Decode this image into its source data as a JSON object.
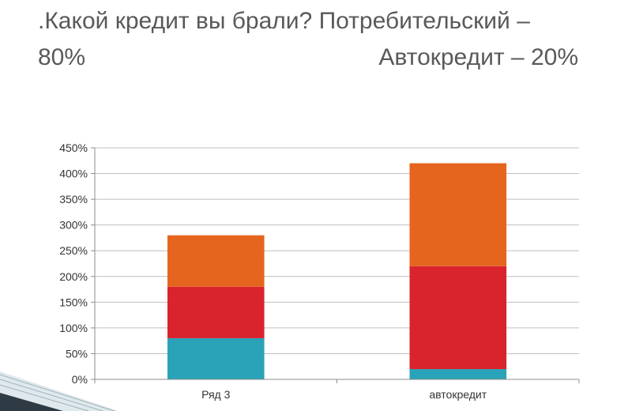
{
  "slide": {
    "title_line1": ".Какой кредит вы брали? Потребительский –",
    "title_line2_left": "80%",
    "title_line2_right": "Автокредит – 20%"
  },
  "chart_data": {
    "type": "bar",
    "stacked": true,
    "title": "",
    "xlabel": "",
    "ylabel": "",
    "categories": [
      "Ряд 3",
      "автокредит"
    ],
    "ylim": [
      0,
      450
    ],
    "yticks": [
      0,
      50,
      100,
      150,
      200,
      250,
      300,
      350,
      400,
      450
    ],
    "ytick_format": "percent",
    "grid": true,
    "legend": "none",
    "series": [
      {
        "values": [
          80,
          20
        ],
        "color": "#2aa3b9"
      },
      {
        "values": [
          100,
          200
        ],
        "color": "#d9232d"
      },
      {
        "values": [
          100,
          200
        ],
        "color": "#e5651e"
      }
    ]
  }
}
